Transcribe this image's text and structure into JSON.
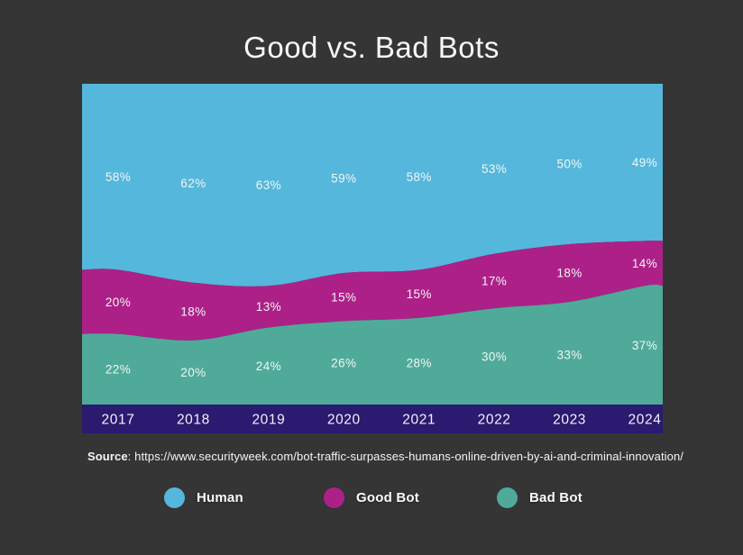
{
  "page": {
    "title": "Good vs. Bad Bots",
    "background_color": "#353535"
  },
  "source": {
    "label": "Source",
    "separator": ": ",
    "url_text": "https://www.securityweek.com/bot-traffic-surpasses-humans-online-driven-by-ai-and-criminal-innovation/"
  },
  "legend": [
    {
      "label": "Human",
      "color": "#55b7dc"
    },
    {
      "label": "Good Bot",
      "color": "#ad2088"
    },
    {
      "label": "Bad Bot",
      "color": "#4faa99"
    }
  ],
  "chart_data": {
    "type": "area",
    "stacked": true,
    "stack_total": 100,
    "title": "Good vs. Bad Bots",
    "categories": [
      "2017",
      "2018",
      "2019",
      "2020",
      "2021",
      "2022",
      "2023",
      "2024"
    ],
    "series": [
      {
        "name": "Human",
        "color": "#55b7dc",
        "values": [
          58,
          62,
          63,
          59,
          58,
          53,
          50,
          49
        ]
      },
      {
        "name": "Good Bot",
        "color": "#ad2088",
        "values": [
          20,
          18,
          13,
          15,
          15,
          17,
          18,
          14
        ]
      },
      {
        "name": "Bad Bot",
        "color": "#4faa99",
        "values": [
          22,
          20,
          24,
          26,
          28,
          30,
          33,
          37
        ]
      }
    ],
    "value_label_suffix": "%",
    "value_label_color": "#f2f6f6",
    "axis_band_color": "#2a1a70",
    "axis_label_color": "#f2f2f6",
    "grid": false,
    "legend_position": "bottom",
    "ylim": [
      0,
      100
    ]
  }
}
